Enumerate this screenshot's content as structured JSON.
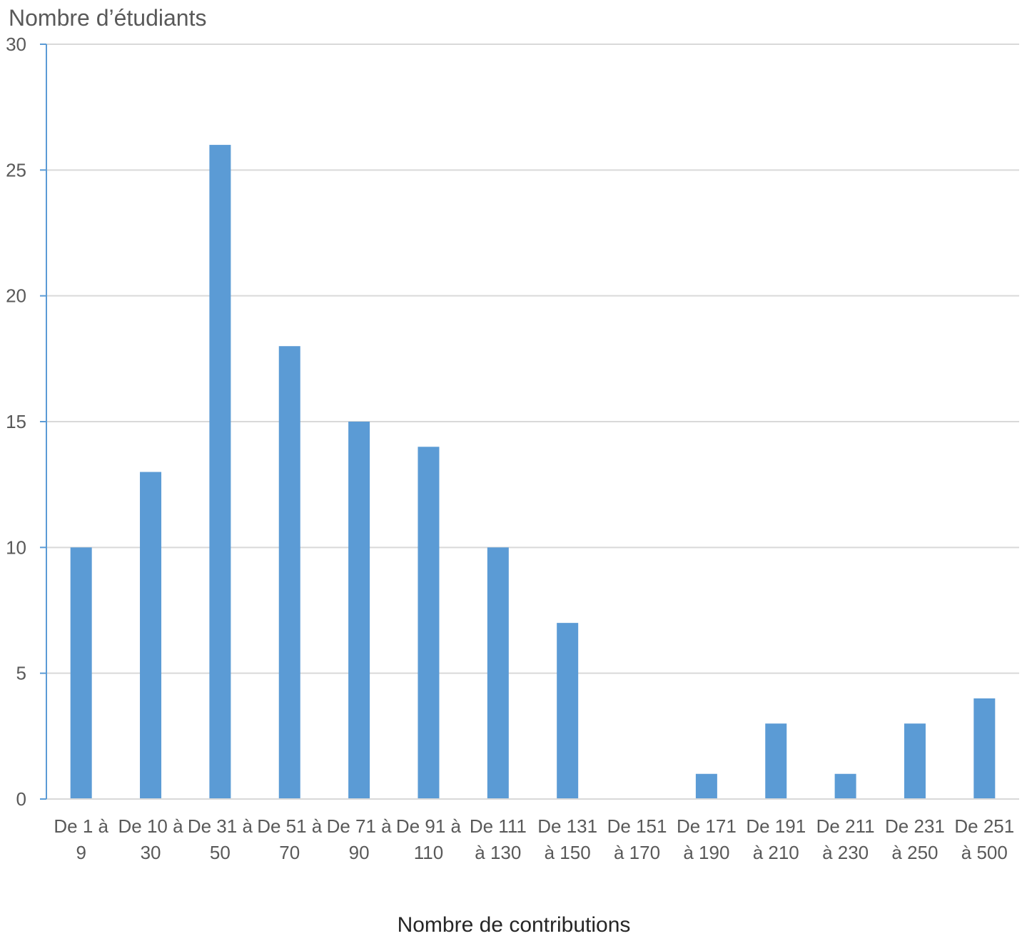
{
  "chart_data": {
    "type": "bar",
    "title": "",
    "ylabel": "Nombre d’étudiants",
    "xlabel": "Nombre de contributions",
    "categories": [
      [
        "De 1 à",
        "9"
      ],
      [
        "De 10 à",
        "30"
      ],
      [
        "De 31 à",
        "50"
      ],
      [
        "De 51 à",
        "70"
      ],
      [
        "De 71 à",
        "90"
      ],
      [
        "De 91 à",
        "110"
      ],
      [
        "De 111",
        "à 130"
      ],
      [
        "De 131",
        "à 150"
      ],
      [
        "De 151",
        "à 170"
      ],
      [
        "De 171",
        "à 190"
      ],
      [
        "De 191",
        "à 210"
      ],
      [
        "De 211",
        "à 230"
      ],
      [
        "De 231",
        "à 250"
      ],
      [
        "De 251",
        "à 500"
      ]
    ],
    "values": [
      10,
      13,
      26,
      18,
      15,
      14,
      10,
      7,
      0,
      1,
      3,
      1,
      3,
      4
    ],
    "ylim": [
      0,
      30
    ],
    "yticks": [
      0,
      5,
      10,
      15,
      20,
      25,
      30
    ],
    "grid": true,
    "legend": "none",
    "colors": {
      "bar": "#5b9bd5",
      "axis": "#5b9bd5",
      "grid": "#d9d9d9",
      "text": "#595959"
    }
  }
}
